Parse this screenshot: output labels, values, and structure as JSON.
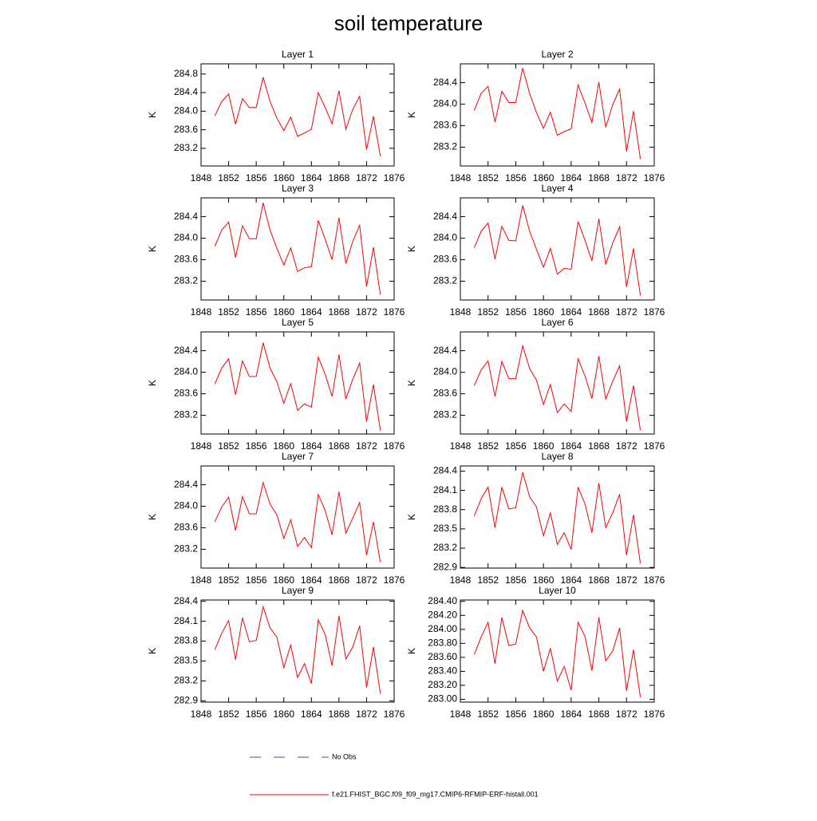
{
  "title": "soil temperature",
  "legend": [
    {
      "name": "No Obs",
      "color": "#4444cc",
      "line_style": "dashed"
    },
    {
      "name": "f.e21.FHIST_BGC.f09_f09_mg17.CMIP6-RFMIP-ERF-histall.001",
      "color": "#ff0000",
      "line_style": "solid"
    }
  ],
  "chart_data": [
    {
      "type": "line",
      "title": "Layer 1",
      "y_label": "K",
      "color": "#ff0000",
      "x": [
        1850,
        1851,
        1852,
        1853,
        1854,
        1855,
        1856,
        1857,
        1858,
        1859,
        1860,
        1861,
        1862,
        1863,
        1864,
        1865,
        1866,
        1867,
        1868,
        1869,
        1870,
        1871,
        1872,
        1873,
        1874
      ],
      "values": [
        283.9,
        284.21,
        284.37,
        283.72,
        284.27,
        284.08,
        284.08,
        284.73,
        284.21,
        283.85,
        283.58,
        283.87,
        283.46,
        283.53,
        283.61,
        284.4,
        284.08,
        283.73,
        284.44,
        283.61,
        284.04,
        284.32,
        283.17,
        283.89,
        283.03
      ],
      "xlim": [
        1848,
        1876
      ],
      "xticks": [
        1848,
        1852,
        1856,
        1860,
        1864,
        1868,
        1872,
        1876
      ],
      "ylim": [
        282.82,
        285.02
      ],
      "yticks": [
        283.2,
        283.6,
        {
          "value": 284.0,
          "label": "284.0"
        },
        284.4,
        284.8
      ]
    },
    {
      "type": "line",
      "title": "Layer 2",
      "y_label": "K",
      "color": "#ff0000",
      "x": [
        1850,
        1851,
        1852,
        1853,
        1854,
        1855,
        1856,
        1857,
        1858,
        1859,
        1860,
        1861,
        1862,
        1863,
        1864,
        1865,
        1866,
        1867,
        1868,
        1869,
        1870,
        1871,
        1872,
        1873,
        1874
      ],
      "values": [
        283.88,
        284.2,
        284.33,
        283.67,
        284.24,
        284.03,
        284.03,
        284.67,
        284.2,
        283.84,
        283.55,
        283.85,
        283.42,
        283.49,
        283.54,
        284.36,
        284.02,
        283.66,
        284.41,
        283.57,
        283.99,
        284.28,
        283.12,
        283.87,
        282.98
      ],
      "xlim": [
        1848,
        1876
      ],
      "xticks": [
        1848,
        1852,
        1856,
        1860,
        1864,
        1868,
        1872,
        1876
      ],
      "ylim": [
        282.85,
        284.75
      ],
      "yticks": [
        283.2,
        283.6,
        {
          "value": 284.0,
          "label": "284.0"
        },
        284.4
      ]
    },
    {
      "type": "line",
      "title": "Layer 3",
      "y_label": "K",
      "color": "#ff0000",
      "x": [
        1850,
        1851,
        1852,
        1853,
        1854,
        1855,
        1856,
        1857,
        1858,
        1859,
        1860,
        1861,
        1862,
        1863,
        1864,
        1865,
        1866,
        1867,
        1868,
        1869,
        1870,
        1871,
        1872,
        1873,
        1874
      ],
      "values": [
        283.85,
        284.15,
        284.3,
        283.64,
        284.23,
        283.99,
        283.99,
        284.66,
        284.15,
        283.81,
        283.5,
        283.82,
        283.38,
        283.45,
        283.47,
        284.33,
        283.98,
        283.6,
        284.38,
        283.53,
        283.94,
        284.24,
        283.1,
        283.83,
        282.95
      ],
      "xlim": [
        1848,
        1876
      ],
      "xticks": [
        1848,
        1852,
        1856,
        1860,
        1864,
        1868,
        1872,
        1876
      ],
      "ylim": [
        282.85,
        284.75
      ],
      "yticks": [
        283.2,
        283.6,
        {
          "value": 284.0,
          "label": "284.0"
        },
        284.4
      ]
    },
    {
      "type": "line",
      "title": "Layer 4",
      "y_label": "K",
      "color": "#ff0000",
      "x": [
        1850,
        1851,
        1852,
        1853,
        1854,
        1855,
        1856,
        1857,
        1858,
        1859,
        1860,
        1861,
        1862,
        1863,
        1864,
        1865,
        1866,
        1867,
        1868,
        1869,
        1870,
        1871,
        1872,
        1873,
        1874
      ],
      "values": [
        283.82,
        284.13,
        284.28,
        283.61,
        284.22,
        283.96,
        283.95,
        284.61,
        284.13,
        283.79,
        283.46,
        283.81,
        283.33,
        283.44,
        283.42,
        284.31,
        283.96,
        283.58,
        284.36,
        283.51,
        283.91,
        284.21,
        283.09,
        283.81,
        282.93
      ],
      "xlim": [
        1848,
        1876
      ],
      "xticks": [
        1848,
        1852,
        1856,
        1860,
        1864,
        1868,
        1872,
        1876
      ],
      "ylim": [
        282.85,
        284.75
      ],
      "yticks": [
        283.2,
        283.6,
        {
          "value": 284.0,
          "label": "284.0"
        },
        284.4
      ]
    },
    {
      "type": "line",
      "title": "Layer 5",
      "y_label": "K",
      "color": "#ff0000",
      "x": [
        1850,
        1851,
        1852,
        1853,
        1854,
        1855,
        1856,
        1857,
        1858,
        1859,
        1860,
        1861,
        1862,
        1863,
        1864,
        1865,
        1866,
        1867,
        1868,
        1869,
        1870,
        1871,
        1872,
        1873,
        1874
      ],
      "values": [
        283.78,
        284.08,
        284.25,
        283.58,
        284.21,
        283.92,
        283.92,
        284.55,
        284.08,
        283.82,
        283.42,
        283.79,
        283.29,
        283.41,
        283.35,
        284.28,
        283.96,
        283.55,
        284.33,
        283.5,
        283.87,
        284.17,
        283.08,
        283.77,
        282.92
      ],
      "xlim": [
        1848,
        1876
      ],
      "xticks": [
        1848,
        1852,
        1856,
        1860,
        1864,
        1868,
        1872,
        1876
      ],
      "ylim": [
        282.85,
        284.75
      ],
      "yticks": [
        283.2,
        283.6,
        {
          "value": 284.0,
          "label": "284.0"
        },
        284.4
      ]
    },
    {
      "type": "line",
      "title": "Layer 6",
      "y_label": "K",
      "color": "#ff0000",
      "x": [
        1850,
        1851,
        1852,
        1853,
        1854,
        1855,
        1856,
        1857,
        1858,
        1859,
        1860,
        1861,
        1862,
        1863,
        1864,
        1865,
        1866,
        1867,
        1868,
        1869,
        1870,
        1871,
        1872,
        1873,
        1874
      ],
      "values": [
        283.75,
        284.04,
        284.21,
        283.55,
        284.2,
        283.88,
        283.88,
        284.49,
        284.07,
        283.85,
        283.4,
        283.77,
        283.25,
        283.41,
        283.27,
        284.25,
        283.93,
        283.51,
        284.3,
        283.5,
        283.83,
        284.12,
        283.08,
        283.75,
        282.92
      ],
      "xlim": [
        1848,
        1876
      ],
      "xticks": [
        1848,
        1852,
        1856,
        1860,
        1864,
        1868,
        1872,
        1876
      ],
      "ylim": [
        282.85,
        284.75
      ],
      "yticks": [
        283.2,
        283.6,
        {
          "value": 284.0,
          "label": "284.0"
        },
        284.4
      ]
    },
    {
      "type": "line",
      "title": "Layer 7",
      "y_label": "K",
      "color": "#ff0000",
      "x": [
        1850,
        1851,
        1852,
        1853,
        1854,
        1855,
        1856,
        1857,
        1858,
        1859,
        1860,
        1861,
        1862,
        1863,
        1864,
        1865,
        1866,
        1867,
        1868,
        1869,
        1870,
        1871,
        1872,
        1873,
        1874
      ],
      "values": [
        283.71,
        283.99,
        284.17,
        283.55,
        284.18,
        283.86,
        283.86,
        284.44,
        284.04,
        283.84,
        283.4,
        283.75,
        283.25,
        283.42,
        283.23,
        284.22,
        283.92,
        283.47,
        284.27,
        283.5,
        283.78,
        284.07,
        283.09,
        283.71,
        282.96
      ],
      "xlim": [
        1848,
        1876
      ],
      "xticks": [
        1848,
        1852,
        1856,
        1860,
        1864,
        1868,
        1872,
        1876
      ],
      "ylim": [
        282.85,
        284.75
      ],
      "yticks": [
        283.2,
        283.6,
        {
          "value": 284.0,
          "label": "284.0"
        },
        284.4
      ]
    },
    {
      "type": "line",
      "title": "Layer 8",
      "y_label": "K",
      "color": "#ff0000",
      "x": [
        1850,
        1851,
        1852,
        1853,
        1854,
        1855,
        1856,
        1857,
        1858,
        1859,
        1860,
        1861,
        1862,
        1863,
        1864,
        1865,
        1866,
        1867,
        1868,
        1869,
        1870,
        1871,
        1872,
        1873,
        1874
      ],
      "values": [
        283.7,
        283.97,
        284.15,
        283.52,
        284.15,
        283.81,
        283.83,
        284.38,
        284.0,
        283.84,
        283.39,
        283.75,
        283.26,
        283.44,
        283.18,
        284.15,
        283.89,
        283.44,
        284.21,
        283.52,
        283.75,
        284.04,
        283.09,
        283.72,
        282.96
      ],
      "xlim": [
        1848,
        1876
      ],
      "xticks": [
        1848,
        1852,
        1856,
        1860,
        1864,
        1868,
        1872,
        1876
      ],
      "ylim": [
        282.89,
        284.48
      ],
      "yticks": [
        282.9,
        283.2,
        283.5,
        283.8,
        284.1,
        284.4
      ]
    },
    {
      "type": "line",
      "title": "Layer 9",
      "y_label": "K",
      "color": "#ff0000",
      "x": [
        1850,
        1851,
        1852,
        1853,
        1854,
        1855,
        1856,
        1857,
        1858,
        1859,
        1860,
        1861,
        1862,
        1863,
        1864,
        1865,
        1866,
        1867,
        1868,
        1869,
        1870,
        1871,
        1872,
        1873,
        1874
      ],
      "values": [
        283.67,
        283.92,
        284.11,
        283.52,
        284.15,
        283.79,
        283.81,
        284.32,
        284.0,
        283.86,
        283.4,
        283.74,
        283.25,
        283.46,
        283.16,
        284.12,
        283.9,
        283.43,
        284.18,
        283.53,
        283.71,
        284.03,
        283.1,
        283.71,
        283.01
      ],
      "xlim": [
        1848,
        1876
      ],
      "xticks": [
        1848,
        1852,
        1856,
        1860,
        1864,
        1868,
        1872,
        1876
      ],
      "ylim": [
        282.88,
        284.42
      ],
      "yticks": [
        282.9,
        283.2,
        283.5,
        283.8,
        284.1,
        284.4
      ]
    },
    {
      "type": "line",
      "title": "Layer 10",
      "y_label": "K",
      "color": "#ff0000",
      "x": [
        1850,
        1851,
        1852,
        1853,
        1854,
        1855,
        1856,
        1857,
        1858,
        1859,
        1860,
        1861,
        1862,
        1863,
        1864,
        1865,
        1866,
        1867,
        1868,
        1869,
        1870,
        1871,
        1872,
        1873,
        1874
      ],
      "values": [
        283.64,
        283.89,
        284.1,
        283.51,
        284.17,
        283.77,
        283.79,
        284.27,
        284.02,
        283.89,
        283.4,
        283.73,
        283.26,
        283.47,
        283.13,
        284.1,
        283.9,
        283.41,
        284.17,
        283.55,
        283.69,
        284.02,
        283.12,
        283.71,
        283.03
      ],
      "xlim": [
        1848,
        1876
      ],
      "xticks": [
        1848,
        1852,
        1856,
        1860,
        1864,
        1868,
        1872,
        1876
      ],
      "ylim": [
        282.96,
        284.42
      ],
      "yticks": [
        {
          "value": 283.0,
          "label": "283.00"
        },
        {
          "value": 283.2,
          "label": "283.20"
        },
        {
          "value": 283.4,
          "label": "283.40"
        },
        {
          "value": 283.6,
          "label": "283.60"
        },
        {
          "value": 283.8,
          "label": "283.80"
        },
        {
          "value": 284.0,
          "label": "284.00"
        },
        {
          "value": 284.2,
          "label": "284.20"
        },
        {
          "value": 284.4,
          "label": "284.40"
        }
      ]
    }
  ]
}
